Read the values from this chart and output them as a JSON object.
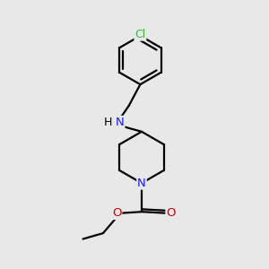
{
  "background_color": "#e8e8e8",
  "atom_colors": {
    "C": "#000000",
    "N": "#1a1aff",
    "O": "#cc0000",
    "Cl": "#3db33d",
    "H": "#000000"
  },
  "bond_color": "#000000",
  "bond_width": 1.6,
  "figsize": [
    3.0,
    3.0
  ],
  "dpi": 100,
  "xlim": [
    0.15,
    0.85
  ],
  "ylim": [
    0.03,
    0.97
  ]
}
